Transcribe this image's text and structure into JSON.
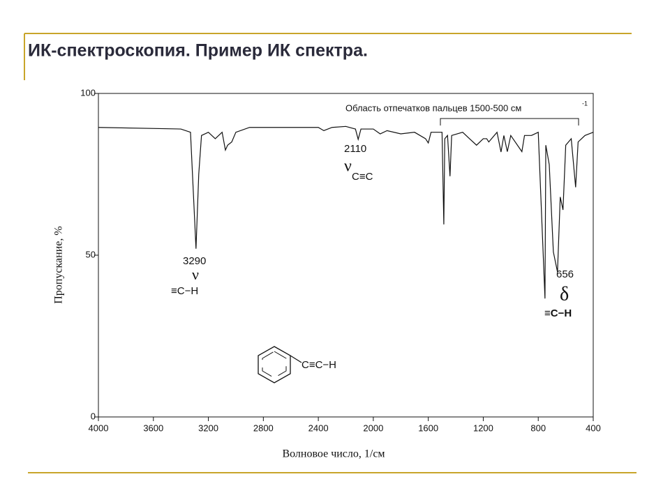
{
  "slide_title": "ИК-спектроскопия. Пример ИК спектра.",
  "chart_data": {
    "type": "line",
    "x_label": "Волновое число, 1/см",
    "y_label": "Пропускание, %",
    "x": [
      4000,
      3400,
      3330,
      3310,
      3290,
      3270,
      3250,
      3200,
      3150,
      3100,
      3076,
      3060,
      3030,
      3000,
      2900,
      2400,
      2360,
      2300,
      2200,
      2130,
      2110,
      2090,
      2000,
      1950,
      1900,
      1800,
      1700,
      1620,
      1600,
      1580,
      1500,
      1487,
      1480,
      1460,
      1442,
      1430,
      1350,
      1300,
      1249,
      1200,
      1175,
      1160,
      1100,
      1071,
      1050,
      1025,
      1000,
      919,
      900,
      850,
      800,
      751,
      745,
      720,
      690,
      660,
      640,
      620,
      600,
      560,
      528,
      510,
      460,
      400
    ],
    "values": [
      89.5,
      89,
      88,
      70,
      52,
      75,
      87,
      88,
      86,
      88,
      82.5,
      84,
      85,
      88,
      89.5,
      89.5,
      88.5,
      89.5,
      89.8,
      89,
      85.8,
      89,
      89,
      87.5,
      88.5,
      87.5,
      88,
      86,
      84.7,
      88,
      88,
      59.5,
      86,
      87,
      74.4,
      87,
      88,
      86,
      84,
      86,
      86,
      85,
      88,
      81.9,
      87,
      82,
      87,
      82,
      87,
      87,
      88,
      36.6,
      84,
      78,
      51,
      44.8,
      68,
      64,
      84,
      86,
      71,
      85,
      87,
      88
    ],
    "color": "#111111",
    "xlim": [
      4000,
      400
    ],
    "ylim": [
      0,
      100
    ],
    "xticks": [
      4000,
      3600,
      3200,
      2800,
      2400,
      2000,
      1600,
      1200,
      800,
      400
    ],
    "yticks": [
      0,
      50,
      100
    ],
    "annotations": [
      "3290",
      "ν",
      "≡C−H",
      "2110",
      "ν",
      "C≡C",
      "Область отпечатков пальцев 1500-500 см",
      "-1",
      "656",
      "δ",
      "≡C−H",
      "C≡C−H"
    ]
  }
}
